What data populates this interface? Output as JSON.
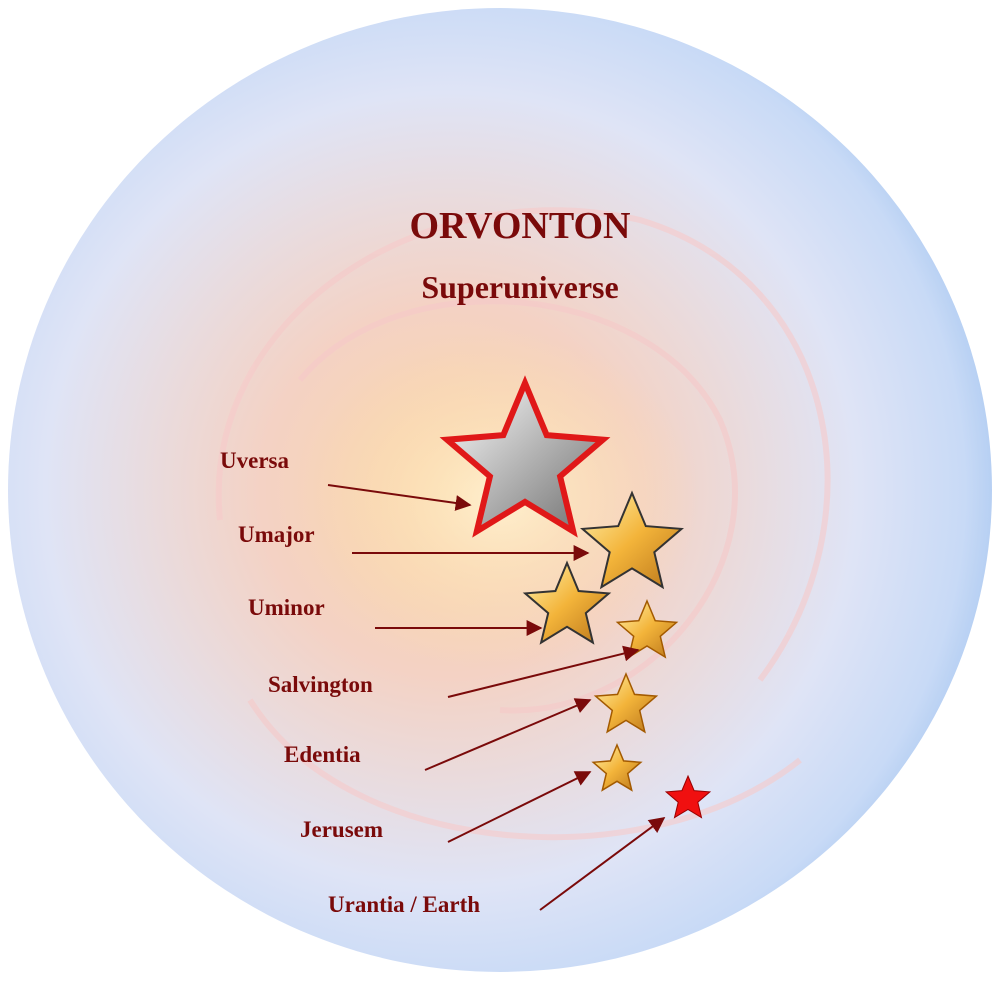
{
  "title": "ORVONTON",
  "subtitle": "Superuniverse",
  "nodes": [
    {
      "label": "Uversa"
    },
    {
      "label": "Umajor"
    },
    {
      "label": "Uminor"
    },
    {
      "label": "Salvington"
    },
    {
      "label": "Edentia"
    },
    {
      "label": "Jerusem"
    },
    {
      "label": "Urantia / Earth"
    }
  ]
}
